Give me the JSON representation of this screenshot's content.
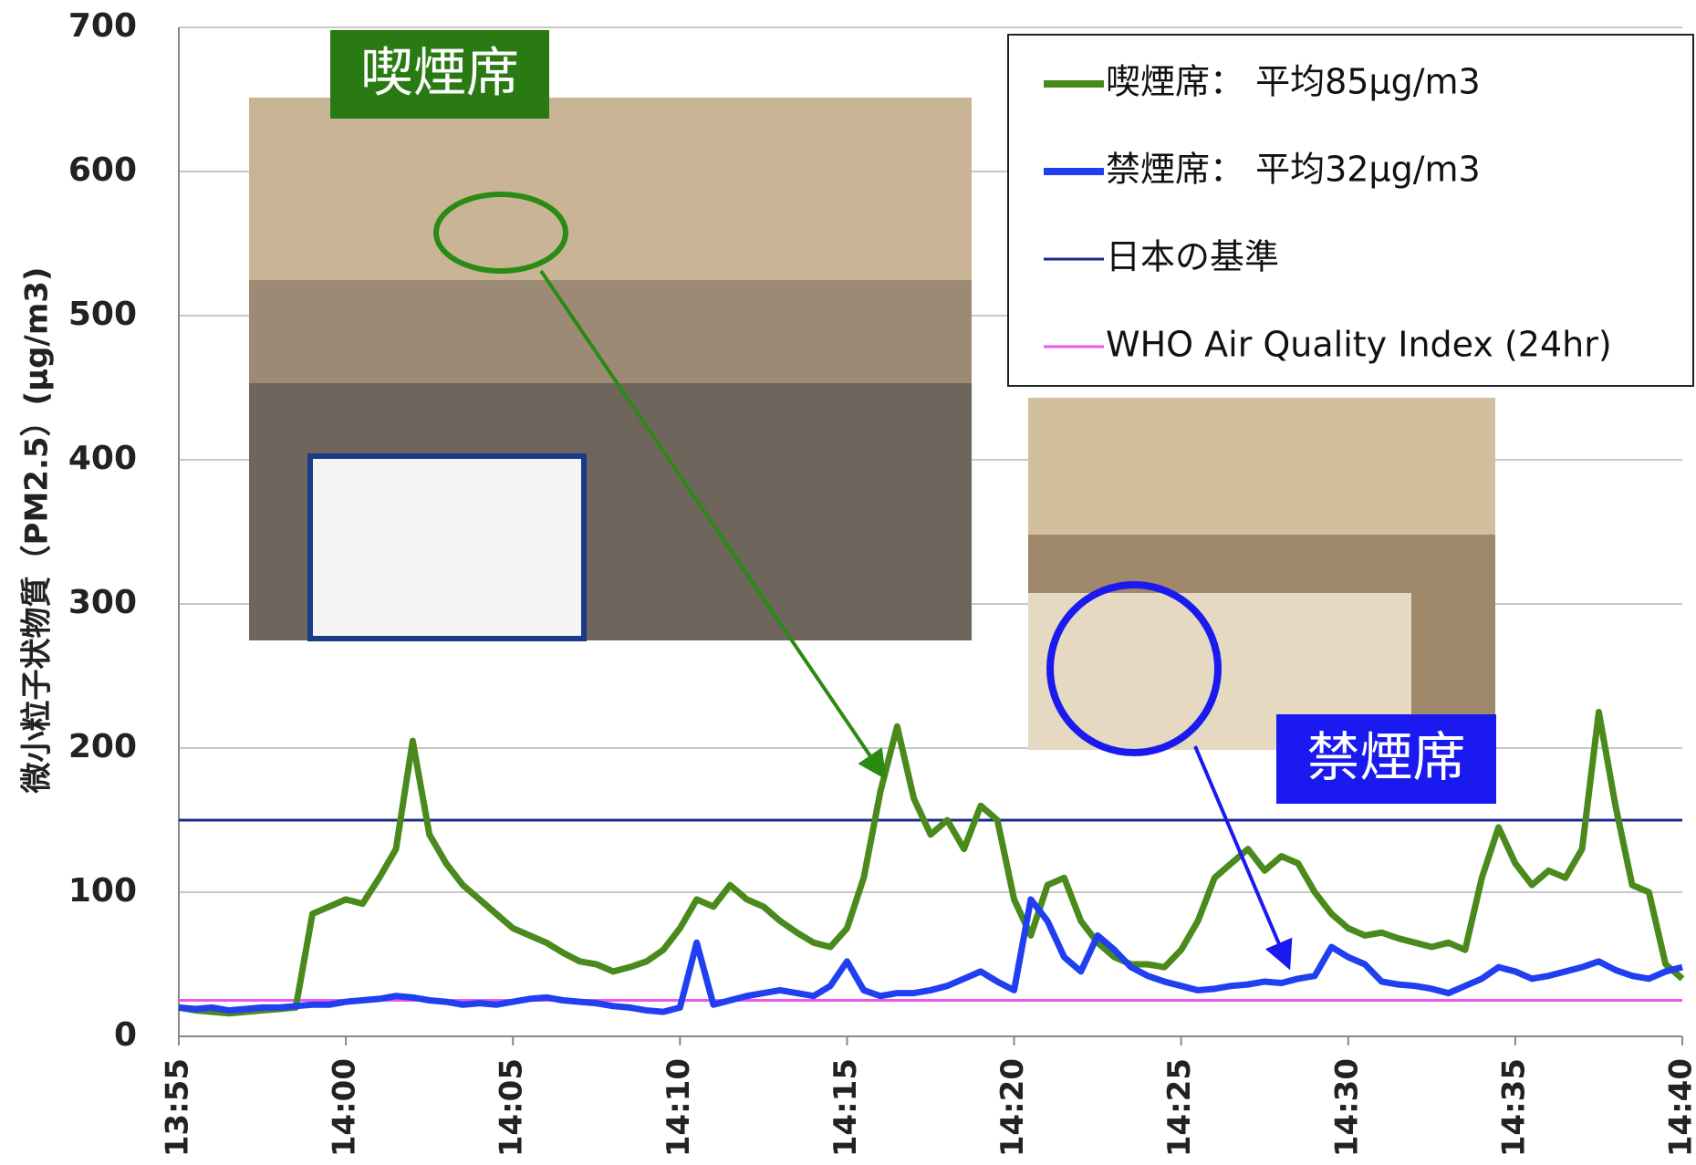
{
  "chart_data": {
    "type": "line",
    "y_label": "微小粒子状物質（PM2.5）(µg/m3)",
    "xlim": [
      0,
      45
    ],
    "xticks": [
      {
        "value": 0,
        "label": "13:55"
      },
      {
        "value": 5,
        "label": "14:00"
      },
      {
        "value": 10,
        "label": "14:05"
      },
      {
        "value": 15,
        "label": "14:10"
      },
      {
        "value": 20,
        "label": "14:15"
      },
      {
        "value": 25,
        "label": "14:20"
      },
      {
        "value": 30,
        "label": "14:25"
      },
      {
        "value": 35,
        "label": "14:30"
      },
      {
        "value": 40,
        "label": "14:35"
      },
      {
        "value": 45,
        "label": "14:40"
      }
    ],
    "ylim": [
      0,
      700
    ],
    "yticks": [
      0,
      100,
      200,
      300,
      400,
      500,
      600,
      700
    ],
    "grid": true,
    "legend": "upper right",
    "x": [
      0,
      0.5,
      1,
      1.5,
      2,
      2.5,
      3,
      3.5,
      4,
      4.5,
      5,
      5.5,
      6,
      6.5,
      7,
      7.5,
      8,
      8.5,
      9,
      9.5,
      10,
      10.5,
      11,
      11.5,
      12,
      12.5,
      13,
      13.5,
      14,
      14.5,
      15,
      15.5,
      16,
      16.5,
      17,
      17.5,
      18,
      18.5,
      19,
      19.5,
      20,
      20.5,
      21,
      21.5,
      22,
      22.5,
      23,
      23.5,
      24,
      24.5,
      25,
      25.5,
      26,
      26.5,
      27,
      27.5,
      28,
      28.5,
      29,
      29.5,
      30,
      30.5,
      31,
      31.5,
      32,
      32.5,
      33,
      33.5,
      34,
      34.5,
      35,
      35.5,
      36,
      36.5,
      37,
      37.5,
      38,
      38.5,
      39,
      39.5,
      40,
      40.5,
      41,
      41.5,
      42,
      42.5,
      43,
      43.5,
      44,
      44.5,
      45
    ],
    "series": [
      {
        "name": "喫煙席：  平均85µg/m3",
        "color": "#4a8a1c",
        "values": [
          20,
          18,
          17,
          16,
          17,
          18,
          19,
          20,
          85,
          90,
          95,
          92,
          110,
          130,
          205,
          140,
          120,
          105,
          95,
          85,
          75,
          70,
          65,
          58,
          52,
          50,
          45,
          48,
          52,
          60,
          75,
          95,
          90,
          105,
          95,
          90,
          80,
          72,
          65,
          62,
          75,
          110,
          170,
          215,
          165,
          140,
          150,
          130,
          160,
          150,
          95,
          70,
          105,
          110,
          80,
          65,
          55,
          50,
          50,
          48,
          60,
          80,
          110,
          120,
          130,
          115,
          125,
          120,
          100,
          85,
          75,
          70,
          72,
          68,
          65,
          62,
          65,
          60,
          110,
          145,
          120,
          105,
          115,
          110,
          130,
          225,
          160,
          105,
          100,
          50,
          40
        ]
      },
      {
        "name": "禁煙席：  平均32µg/m3",
        "color": "#1f3ff0",
        "values": [
          20,
          19,
          20,
          18,
          19,
          20,
          20,
          21,
          22,
          22,
          24,
          25,
          26,
          28,
          27,
          25,
          24,
          22,
          23,
          22,
          24,
          26,
          27,
          25,
          24,
          23,
          21,
          20,
          18,
          17,
          20,
          65,
          22,
          25,
          28,
          30,
          32,
          30,
          28,
          35,
          52,
          32,
          28,
          30,
          30,
          32,
          35,
          40,
          45,
          38,
          32,
          95,
          80,
          55,
          45,
          70,
          60,
          48,
          42,
          38,
          35,
          32,
          33,
          35,
          36,
          38,
          37,
          40,
          42,
          62,
          55,
          50,
          38,
          36,
          35,
          33,
          30,
          35,
          40,
          48,
          45,
          40,
          42,
          45,
          48,
          52,
          46,
          42,
          40,
          45,
          48
        ]
      }
    ],
    "hlines": [
      {
        "name": "日本の基準",
        "color": "#1a2a8c",
        "value": 150
      },
      {
        "name": "WHO Air Quality Index (24hr)",
        "color": "#ee55ee",
        "value": 25
      }
    ],
    "annotations": [
      {
        "text": "喫煙席",
        "color": "#2a7a14"
      },
      {
        "text": "禁煙席",
        "color": "#1a1af0"
      }
    ]
  }
}
